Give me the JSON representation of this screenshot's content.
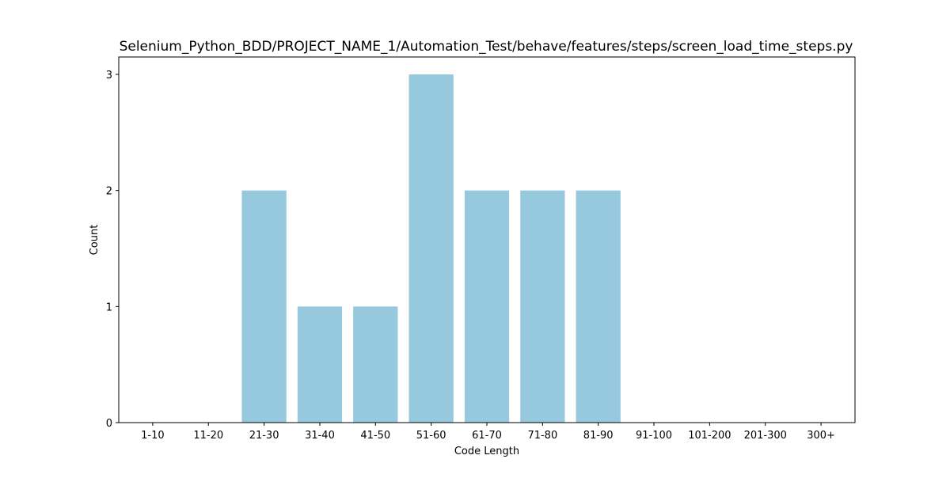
{
  "chart_data": {
    "type": "bar",
    "title": "Selenium_Python_BDD/PROJECT_NAME_1/Automation_Test/behave/features/steps/screen_load_time_steps.py",
    "xlabel": "Code Length",
    "ylabel": "Count",
    "categories": [
      "1-10",
      "11-20",
      "21-30",
      "31-40",
      "41-50",
      "51-60",
      "61-70",
      "71-80",
      "81-90",
      "91-100",
      "101-200",
      "201-300",
      "300+"
    ],
    "values": [
      0,
      0,
      2,
      1,
      1,
      3,
      2,
      2,
      2,
      0,
      0,
      0,
      0
    ],
    "ylim": [
      0,
      3.15
    ],
    "yticks": [
      0,
      1,
      2,
      3
    ],
    "grid": false,
    "bar_color": "#96c9de"
  }
}
